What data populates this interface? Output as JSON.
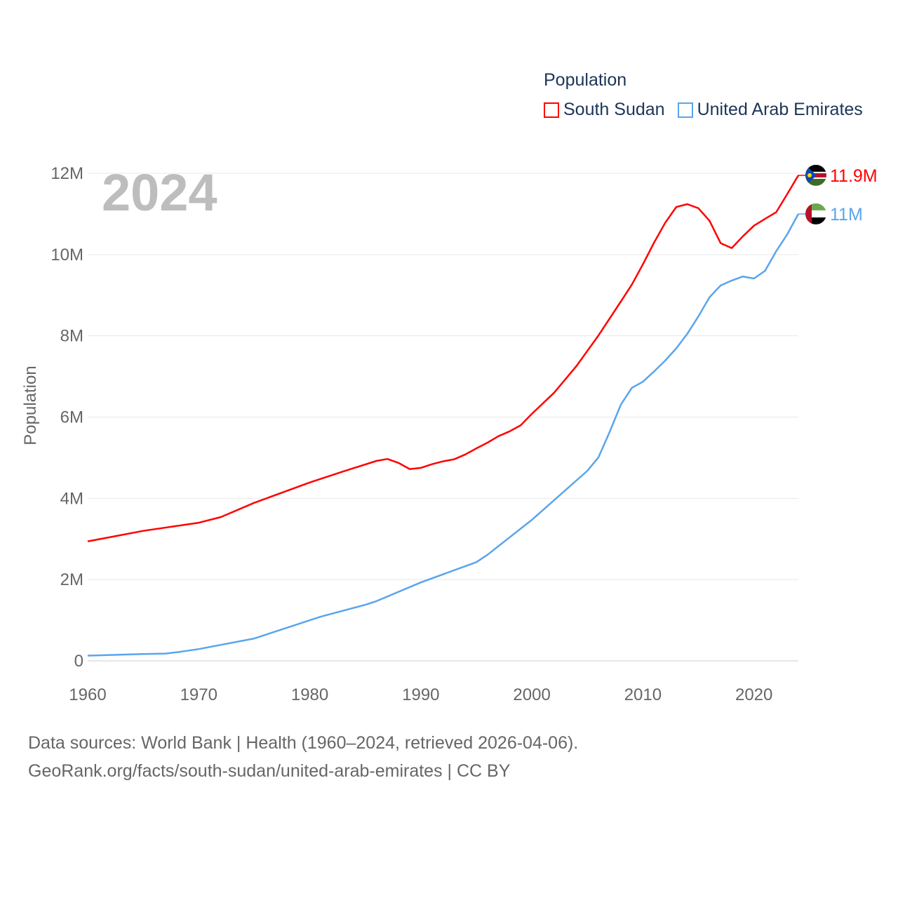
{
  "chart_data": {
    "type": "line",
    "title": "Population",
    "year_label": "2024",
    "ylabel": "Population",
    "xlabel": "",
    "xlim": [
      1960,
      2024
    ],
    "ylim": [
      0,
      12000000
    ],
    "x_ticks": [
      "1960",
      "1970",
      "1980",
      "1990",
      "2000",
      "2010",
      "2020"
    ],
    "y_ticks": [
      {
        "v": 0,
        "label": "0"
      },
      {
        "v": 2000000,
        "label": "2M"
      },
      {
        "v": 4000000,
        "label": "4M"
      },
      {
        "v": 6000000,
        "label": "6M"
      },
      {
        "v": 8000000,
        "label": "8M"
      },
      {
        "v": 10000000,
        "label": "10M"
      },
      {
        "v": 12000000,
        "label": "12M"
      }
    ],
    "grid": true,
    "legend_placement": "top-right",
    "series": [
      {
        "name": "South Sudan",
        "color": "#ff0000",
        "end_label": "11.9M",
        "flag": "south-sudan-flag",
        "points": [
          [
            1960,
            2.94
          ],
          [
            1965,
            3.2
          ],
          [
            1970,
            3.4
          ],
          [
            1972,
            3.54
          ],
          [
            1975,
            3.89
          ],
          [
            1980,
            4.39
          ],
          [
            1983,
            4.66
          ],
          [
            1986,
            4.92
          ],
          [
            1987,
            4.97
          ],
          [
            1988,
            4.87
          ],
          [
            1989,
            4.72
          ],
          [
            1990,
            4.75
          ],
          [
            1991,
            4.84
          ],
          [
            1992,
            4.91
          ],
          [
            1993,
            4.96
          ],
          [
            1994,
            5.08
          ],
          [
            1995,
            5.23
          ],
          [
            1996,
            5.37
          ],
          [
            1997,
            5.53
          ],
          [
            1998,
            5.65
          ],
          [
            1999,
            5.8
          ],
          [
            2000,
            6.08
          ],
          [
            2002,
            6.6
          ],
          [
            2004,
            7.25
          ],
          [
            2006,
            8.01
          ],
          [
            2008,
            8.84
          ],
          [
            2009,
            9.26
          ],
          [
            2010,
            9.76
          ],
          [
            2011,
            10.29
          ],
          [
            2012,
            10.78
          ],
          [
            2013,
            11.17
          ],
          [
            2014,
            11.24
          ],
          [
            2015,
            11.14
          ],
          [
            2016,
            10.83
          ],
          [
            2017,
            10.28
          ],
          [
            2018,
            10.16
          ],
          [
            2019,
            10.45
          ],
          [
            2020,
            10.71
          ],
          [
            2021,
            10.88
          ],
          [
            2022,
            11.04
          ],
          [
            2023,
            11.49
          ],
          [
            2024,
            11.95
          ]
        ]
      },
      {
        "name": "United Arab Emirates",
        "color": "#5aa5ec",
        "end_label": "11M",
        "flag": "uae-flag",
        "points": [
          [
            1960,
            0.13
          ],
          [
            1965,
            0.17
          ],
          [
            1967,
            0.18
          ],
          [
            1968,
            0.21
          ],
          [
            1970,
            0.29
          ],
          [
            1975,
            0.55
          ],
          [
            1980,
            1.0
          ],
          [
            1981,
            1.09
          ],
          [
            1985,
            1.38
          ],
          [
            1986,
            1.47
          ],
          [
            1990,
            1.93
          ],
          [
            1995,
            2.43
          ],
          [
            1996,
            2.61
          ],
          [
            2000,
            3.47
          ],
          [
            2005,
            4.68
          ],
          [
            2006,
            5.01
          ],
          [
            2007,
            5.63
          ],
          [
            2008,
            6.3
          ],
          [
            2009,
            6.72
          ],
          [
            2010,
            6.87
          ],
          [
            2011,
            7.12
          ],
          [
            2012,
            7.39
          ],
          [
            2013,
            7.69
          ],
          [
            2014,
            8.05
          ],
          [
            2015,
            8.48
          ],
          [
            2016,
            8.95
          ],
          [
            2017,
            9.24
          ],
          [
            2018,
            9.36
          ],
          [
            2019,
            9.46
          ],
          [
            2020,
            9.41
          ],
          [
            2021,
            9.6
          ],
          [
            2022,
            10.08
          ],
          [
            2023,
            10.5
          ],
          [
            2024,
            11.0
          ]
        ]
      }
    ],
    "value_unit": "millions"
  },
  "footer": {
    "line1": "Data sources: World Bank | Health (1960–2024, retrieved 2026-04-06).",
    "line2": "GeoRank.org/facts/south-sudan/united-arab-emirates | CC BY"
  }
}
